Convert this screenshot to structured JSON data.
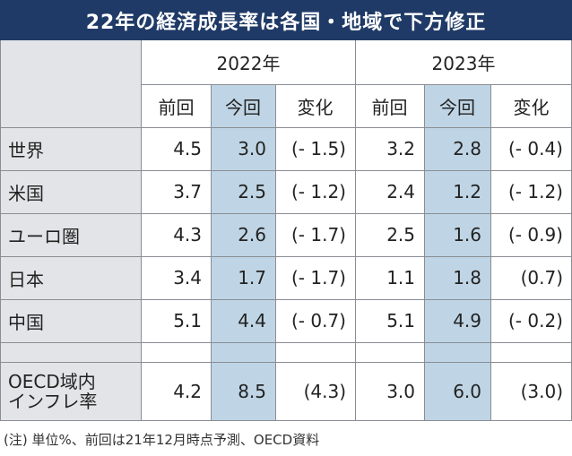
{
  "title": "22年の経済成長率は各国・地域で下方修正",
  "years": [
    "2022年",
    "2023年"
  ],
  "subheaders": [
    "前回",
    "今回",
    "変化",
    "前回",
    "今回",
    "変化"
  ],
  "rows": [
    {
      "label": "世界",
      "values": [
        "4.5",
        "3.0",
        "(- 1.5)",
        "3.2",
        "2.8",
        "(- 0.4)"
      ]
    },
    {
      "label": "米国",
      "values": [
        "3.7",
        "2.5",
        "(- 1.2)",
        "2.4",
        "1.2",
        "(- 1.2)"
      ]
    },
    {
      "label": "ユーロ圏",
      "values": [
        "4.3",
        "2.6",
        "(- 1.7)",
        "2.5",
        "1.6",
        "(- 0.9)"
      ]
    },
    {
      "label": "日本",
      "values": [
        "3.4",
        "1.7",
        "(- 1.7)",
        "1.1",
        "1.8",
        "(0.7)"
      ]
    },
    {
      "label": "中国",
      "values": [
        "5.1",
        "4.4",
        "(- 0.7)",
        "5.1",
        "4.9",
        "(- 0.2)"
      ]
    }
  ],
  "inflation": {
    "label_line1": "OECD域内",
    "label_line2": "インフレ率",
    "values": [
      "4.2",
      "8.5",
      "(4.3)",
      "3.0",
      "6.0",
      "(3.0)"
    ]
  },
  "note": "(注) 単位%、前回は21年12月時点予測、OECD資料",
  "colors": {
    "title_bg": "#1f3a66",
    "label_bg": "#e3e4e7",
    "highlight": "#bfd5e5"
  }
}
